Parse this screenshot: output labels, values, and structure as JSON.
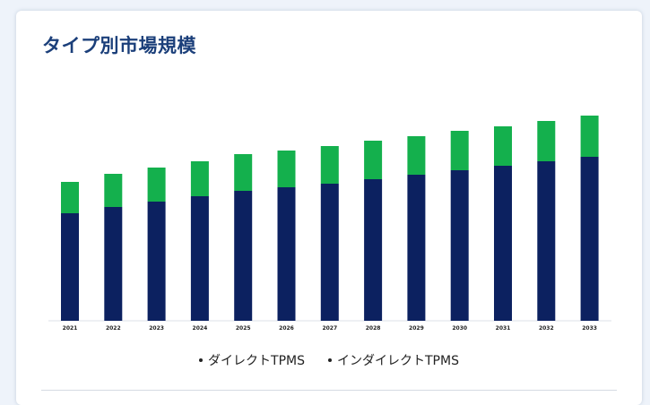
{
  "card": {
    "title": "タイプ別市場規模"
  },
  "legend": [
    {
      "label": "ダイレクトTPMS"
    },
    {
      "label": "インダイレクトTPMS"
    }
  ],
  "colors": {
    "direct": "#0c2160",
    "indirect": "#14b04d",
    "title": "#1b3f7a"
  },
  "chart_data": {
    "type": "bar",
    "stacked": true,
    "categories": [
      "2021",
      "2022",
      "2023",
      "2024",
      "2025",
      "2026",
      "2027",
      "2028",
      "2029",
      "2030",
      "2031",
      "2032",
      "2033"
    ],
    "series": [
      {
        "name": "ダイレクトTPMS",
        "values": [
          120,
          127,
          133,
          139,
          145,
          149,
          153,
          158,
          163,
          168,
          173,
          178,
          183
        ]
      },
      {
        "name": "インダイレクトTPMS",
        "values": [
          35,
          37,
          38,
          39,
          41,
          41,
          42,
          43,
          43,
          44,
          44,
          45,
          46
        ]
      }
    ],
    "ylim": [
      0,
      235
    ],
    "grid": false,
    "legend_position": "bottom"
  }
}
